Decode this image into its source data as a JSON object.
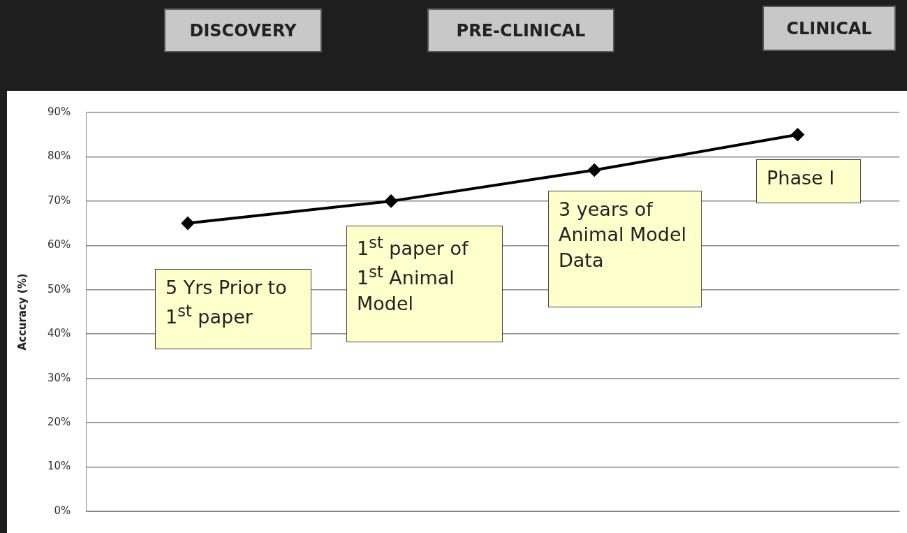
{
  "chart_data": {
    "type": "line",
    "ylabel": "Accuracy (%)",
    "categories": [
      null,
      null,
      null,
      null
    ],
    "series": [
      {
        "color": "#000000",
        "values": [
          65,
          70,
          77,
          85
        ]
      }
    ],
    "ylim": [
      0,
      90
    ],
    "yticks": [
      {
        "value": 0,
        "label": "0%"
      },
      {
        "value": 10,
        "label": "10%"
      },
      {
        "value": 20,
        "label": "20%"
      },
      {
        "value": 30,
        "label": "30%"
      },
      {
        "value": 40,
        "label": "40%"
      },
      {
        "value": 50,
        "label": "50%"
      },
      {
        "value": 60,
        "label": "60%"
      },
      {
        "value": 70,
        "label": "70%"
      },
      {
        "value": 80,
        "label": "80%"
      },
      {
        "value": 90,
        "label": "90%"
      }
    ],
    "grid": "y",
    "legend": false,
    "marker": "diamond",
    "line_style": "solid",
    "tick_labels": "y",
    "annotations": [
      "DISCOVERY",
      "PRE-CLINICAL",
      "CLINICAL",
      "5 Yrs Prior to 1$^{st}$ paper",
      "1$^{st}$ paper of 1$^{st}$ Animal Model",
      "3 years of Animal Model Data",
      "Phase I"
    ]
  }
}
